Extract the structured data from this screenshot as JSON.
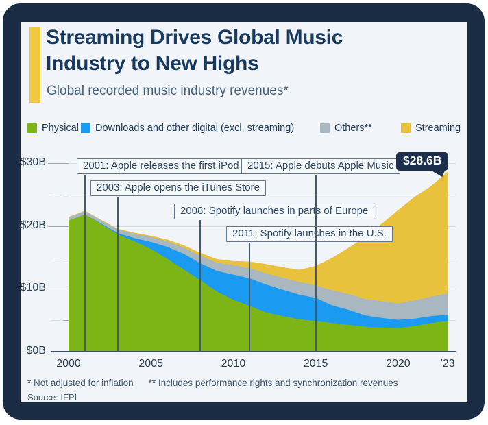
{
  "header": {
    "title_line1": "Streaming Drives Global Music",
    "title_line2": "Industry to New Highs",
    "subtitle": "Global recorded music industry revenues*",
    "accent_color": "#f0c93d"
  },
  "footer": {
    "note1": "* Not adjusted for inflation",
    "note2": "** Includes performance rights and synchronization revenues",
    "source": "Source: IFPI"
  },
  "chart_data": {
    "type": "area",
    "stacked": true,
    "title": "Global recorded music industry revenues",
    "unit": "US$ billions",
    "grid": "horizontal",
    "legend_position": "top",
    "ylim": [
      0,
      30
    ],
    "x": [
      2000,
      2001,
      2002,
      2003,
      2004,
      2005,
      2006,
      2007,
      2008,
      2009,
      2010,
      2011,
      2012,
      2013,
      2014,
      2015,
      2016,
      2017,
      2018,
      2019,
      2020,
      2021,
      2022,
      2023
    ],
    "series": [
      {
        "name": "Physical",
        "color": "#7cb515",
        "values": [
          20.9,
          21.9,
          20.3,
          18.7,
          17.6,
          16.4,
          14.8,
          13.1,
          11.4,
          9.6,
          8.3,
          7.3,
          6.3,
          5.7,
          5.2,
          4.9,
          4.6,
          4.3,
          4.0,
          3.9,
          3.8,
          4.1,
          4.6,
          4.9
        ]
      },
      {
        "name": "Downloads and other digital (excl. streaming)",
        "color": "#1a9af0",
        "values": [
          0.0,
          0.0,
          0.1,
          0.2,
          0.5,
          1.1,
          1.9,
          2.5,
          2.7,
          3.3,
          4.0,
          4.4,
          4.4,
          4.2,
          3.9,
          3.7,
          2.8,
          2.4,
          1.8,
          1.5,
          1.3,
          1.2,
          1.1,
          1.0
        ]
      },
      {
        "name": "Others**",
        "color": "#a9b7c1",
        "values": [
          0.5,
          0.5,
          0.5,
          0.6,
          0.7,
          0.8,
          0.9,
          1.0,
          1.2,
          1.3,
          1.5,
          1.6,
          1.8,
          1.9,
          2.0,
          2.0,
          2.4,
          2.5,
          2.6,
          2.7,
          2.6,
          2.9,
          3.1,
          3.4
        ]
      },
      {
        "name": "Streaming",
        "color": "#e8c23c",
        "values": [
          0.0,
          0.0,
          0.0,
          0.0,
          0.1,
          0.1,
          0.2,
          0.3,
          0.4,
          0.5,
          0.6,
          1.0,
          1.4,
          1.6,
          1.9,
          3.0,
          5.1,
          7.3,
          9.8,
          12.2,
          14.8,
          16.4,
          17.5,
          19.3
        ]
      }
    ],
    "yticks": [
      {
        "value": 0,
        "label": "$0B"
      },
      {
        "value": 10,
        "label": "$10B"
      },
      {
        "value": 20,
        "label": "$20B"
      },
      {
        "value": 30,
        "label": "$30B"
      }
    ],
    "minor_yticks": [
      5,
      15,
      25
    ],
    "xticks": [
      {
        "year": 2000,
        "label": "2000"
      },
      {
        "year": 2005,
        "label": "2005"
      },
      {
        "year": 2010,
        "label": "2010"
      },
      {
        "year": 2015,
        "label": "2015"
      },
      {
        "year": 2020,
        "label": "2020"
      },
      {
        "year": 2023,
        "label": "’23"
      }
    ],
    "annotations": [
      {
        "year": 2001,
        "label": "2001: Apple releases the first iPod"
      },
      {
        "year": 2003,
        "label": "2003: Apple opens the iTunes Store"
      },
      {
        "year": 2008,
        "label": "2008: Spotify launches in parts of Europe"
      },
      {
        "year": 2011,
        "label": "2011: Spotify launches in the U.S."
      },
      {
        "year": 2015,
        "label": "2015: Apple debuts Apple Music"
      }
    ],
    "callout": {
      "year": 2023,
      "label": "$28.6B"
    }
  }
}
